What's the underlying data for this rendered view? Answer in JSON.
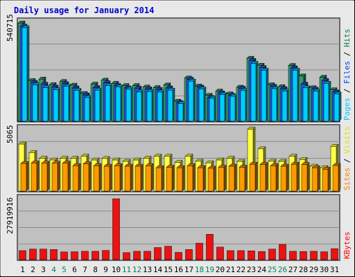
{
  "chart_data": {
    "type": "bar",
    "title": "Daily usage for January 2014",
    "categories": [
      "1",
      "2",
      "3",
      "4",
      "5",
      "6",
      "7",
      "8",
      "9",
      "10",
      "11",
      "12",
      "13",
      "14",
      "15",
      "16",
      "17",
      "18",
      "19",
      "20",
      "21",
      "22",
      "23",
      "24",
      "25",
      "26",
      "27",
      "28",
      "29",
      "30",
      "31"
    ],
    "weekend_days": [
      "4",
      "5",
      "11",
      "12",
      "18",
      "19",
      "25",
      "26"
    ],
    "panels": [
      {
        "id": "hits",
        "ymax_label": "540715",
        "ylim": [
          0,
          540715
        ],
        "legend": [
          {
            "label": "Hits",
            "color": "#008040"
          },
          {
            "label": "Files",
            "color": "#0040ff"
          },
          {
            "label": "Pages",
            "color": "#00c8ff"
          }
        ],
        "series": [
          {
            "name": "Hits",
            "color": "#339966",
            "values": [
              532000,
              220000,
              228000,
              198000,
              215000,
              195000,
              150000,
              201000,
              222000,
              205000,
              193000,
              193000,
              185000,
              182000,
              196000,
              108000,
              234000,
              190000,
              140000,
              163000,
              148000,
              184000,
              341000,
              303000,
              197000,
              187000,
              302000,
              245000,
              181000,
              238000,
              170000
            ]
          },
          {
            "name": "Files",
            "color": "#2255dd",
            "values": [
              515000,
              210000,
              200000,
              185000,
              203000,
              180000,
              142000,
              182000,
              208000,
              193000,
              180000,
              179000,
              175000,
              172000,
              180000,
              100000,
              227000,
              184000,
              128000,
              153000,
              140000,
              178000,
              329000,
              290000,
              188000,
              176000,
              289000,
              200000,
              173000,
              220000,
              158000
            ]
          },
          {
            "name": "Pages",
            "color": "#00ccff",
            "values": [
              507000,
              197000,
              182000,
              170000,
              189000,
              167000,
              128000,
              168000,
              193000,
              185000,
              173000,
              158000,
              161000,
              158000,
              168000,
              95000,
              217000,
              174000,
              124000,
              144000,
              135000,
              166000,
              313000,
              276000,
              176000,
              163000,
              276000,
              181000,
              163000,
              205000,
              147000
            ]
          }
        ]
      },
      {
        "id": "visits",
        "ymax_label": "5065",
        "ylim": [
          0,
          5065
        ],
        "legend": [
          {
            "label": "Visits",
            "color": "#e0e000"
          },
          {
            "label": "Sites",
            "color": "#ff8000"
          }
        ],
        "series": [
          {
            "name": "Visits",
            "color": "#ffff44",
            "values": [
              3780,
              3100,
              2640,
              2500,
              2640,
              2640,
              2800,
              2500,
              2620,
              2500,
              2390,
              2500,
              2640,
              2800,
              2800,
              2300,
              2800,
              2400,
              2270,
              2500,
              2640,
              2390,
              4980,
              3400,
              2400,
              2390,
              2800,
              2540,
              2000,
              1880,
              3600
            ]
          },
          {
            "name": "Sites",
            "color": "#ff9900",
            "values": [
              2220,
              2260,
              2240,
              2240,
              2240,
              2050,
              2190,
              2040,
              2000,
              2040,
              2000,
              2000,
              2040,
              1880,
              1920,
              1880,
              2040,
              1880,
              1840,
              1920,
              2000,
              1920,
              2160,
              2140,
              2040,
              2000,
              2160,
              2140,
              1880,
              1760,
              2060
            ]
          }
        ]
      },
      {
        "id": "kbytes",
        "ymax_label": "27919916",
        "ylim": [
          0,
          27919916
        ],
        "legend": [
          {
            "label": "KBytes",
            "color": "#ff0000"
          }
        ],
        "series": [
          {
            "name": "KBytes",
            "color": "#ee1111",
            "values": [
              4100000,
              4800000,
              4800000,
              4600000,
              3500000,
              3600000,
              3800000,
              3800000,
              4200000,
              27600000,
              3200000,
              3800000,
              3800000,
              5500000,
              6100000,
              3300000,
              4600000,
              7500000,
              11500000,
              5700000,
              4100000,
              4100000,
              4000000,
              3700000,
              4800000,
              6900000,
              3800000,
              3700000,
              3800000,
              3600000,
              5000000
            ]
          }
        ]
      }
    ]
  },
  "colors": {
    "plot_background": "#c0c0c0",
    "frame_background": "#e8e8e8",
    "weekday_tick": "#000000",
    "weekend_tick": "#00805a",
    "title": "#0000cc"
  }
}
